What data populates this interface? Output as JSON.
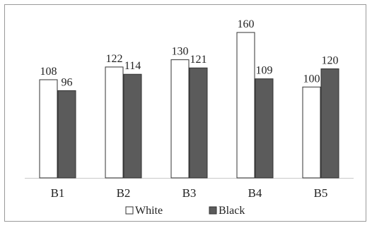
{
  "chart_data": {
    "type": "bar",
    "categories": [
      "B1",
      "B2",
      "B3",
      "B4",
      "B5"
    ],
    "series": [
      {
        "name": "White",
        "values": [
          108,
          122,
          130,
          160,
          100
        ],
        "color": "#ffffff"
      },
      {
        "name": "Black",
        "values": [
          96,
          114,
          121,
          109,
          120
        ],
        "color": "#5b5b5b"
      }
    ],
    "title": "",
    "xlabel": "",
    "ylabel": "",
    "ylim": [
      0,
      170
    ],
    "grid": false,
    "legend": "bottom"
  }
}
